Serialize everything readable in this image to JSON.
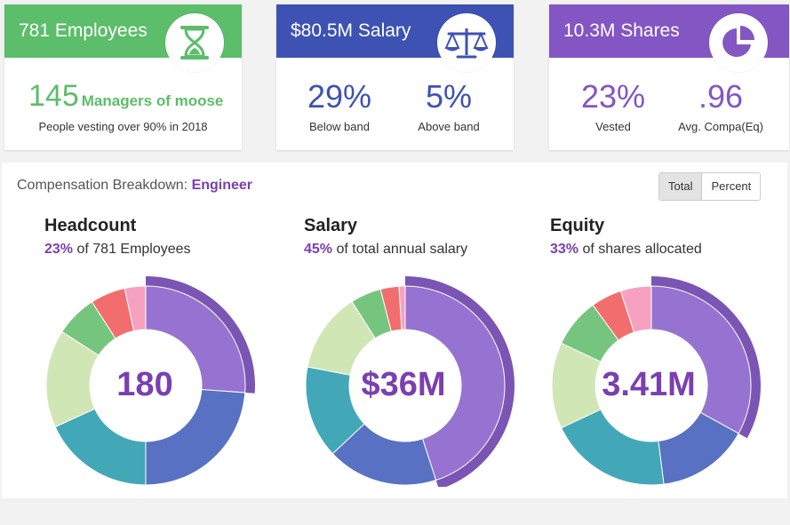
{
  "cards": {
    "employees": {
      "title": "781 Employees",
      "icon": "hourglass-icon",
      "managers_value": "145",
      "managers_label": "Managers of moose",
      "subtitle": "People vesting over 90% in 2018"
    },
    "salary": {
      "title": "$80.5M Salary",
      "icon": "scale-icon",
      "stat1_value": "29%",
      "stat1_label": "Below band",
      "stat2_value": "5%",
      "stat2_label": "Above band"
    },
    "shares": {
      "title": "10.3M Shares",
      "icon": "pie-chart-icon",
      "stat1_value": "23%",
      "stat1_label": "Vested",
      "stat2_value": ".96",
      "stat2_label": "Avg. Compa(Eq)"
    }
  },
  "breakdown": {
    "title_prefix": "Compensation Breakdown:",
    "title_accent": "Engineer",
    "toggle_total": "Total",
    "toggle_percent": "Percent"
  },
  "colors": {
    "green": "#5cbd6a",
    "blue": "#3d52b3",
    "purple": "#8356c4",
    "accent_text": "#7a3fb0"
  },
  "chart_data": [
    {
      "type": "pie",
      "title": "Headcount",
      "subtitle_pct": "23%",
      "subtitle_text": " of 781 Employees",
      "center_value": "180",
      "values": [
        23,
        21,
        16,
        14,
        6,
        5,
        3
      ],
      "colors": [
        "#9673d1",
        "#5871c2",
        "#42a8b8",
        "#d1e6b5",
        "#76c57e",
        "#f26e6e",
        "#f7a1c0"
      ],
      "highlight_index": 0,
      "highlight_color": "#7a55b3"
    },
    {
      "type": "pie",
      "title": "Salary",
      "subtitle_pct": "45%",
      "subtitle_text": " of total annual salary",
      "center_value": "$36M",
      "values": [
        45,
        18,
        15,
        13,
        5,
        3,
        1
      ],
      "colors": [
        "#9673d1",
        "#5871c2",
        "#42a8b8",
        "#d1e6b5",
        "#76c57e",
        "#f26e6e",
        "#f7a1c0"
      ],
      "highlight_index": 0,
      "highlight_color": "#7a55b3"
    },
    {
      "type": "pie",
      "title": "Equity",
      "subtitle_pct": "33%",
      "subtitle_text": " of shares allocated",
      "center_value": "3.41M",
      "values": [
        33,
        15,
        20,
        14,
        8,
        5,
        5
      ],
      "colors": [
        "#9673d1",
        "#5871c2",
        "#42a8b8",
        "#d1e6b5",
        "#76c57e",
        "#f26e6e",
        "#f7a1c0"
      ],
      "highlight_index": 0,
      "highlight_color": "#7a55b3"
    }
  ]
}
